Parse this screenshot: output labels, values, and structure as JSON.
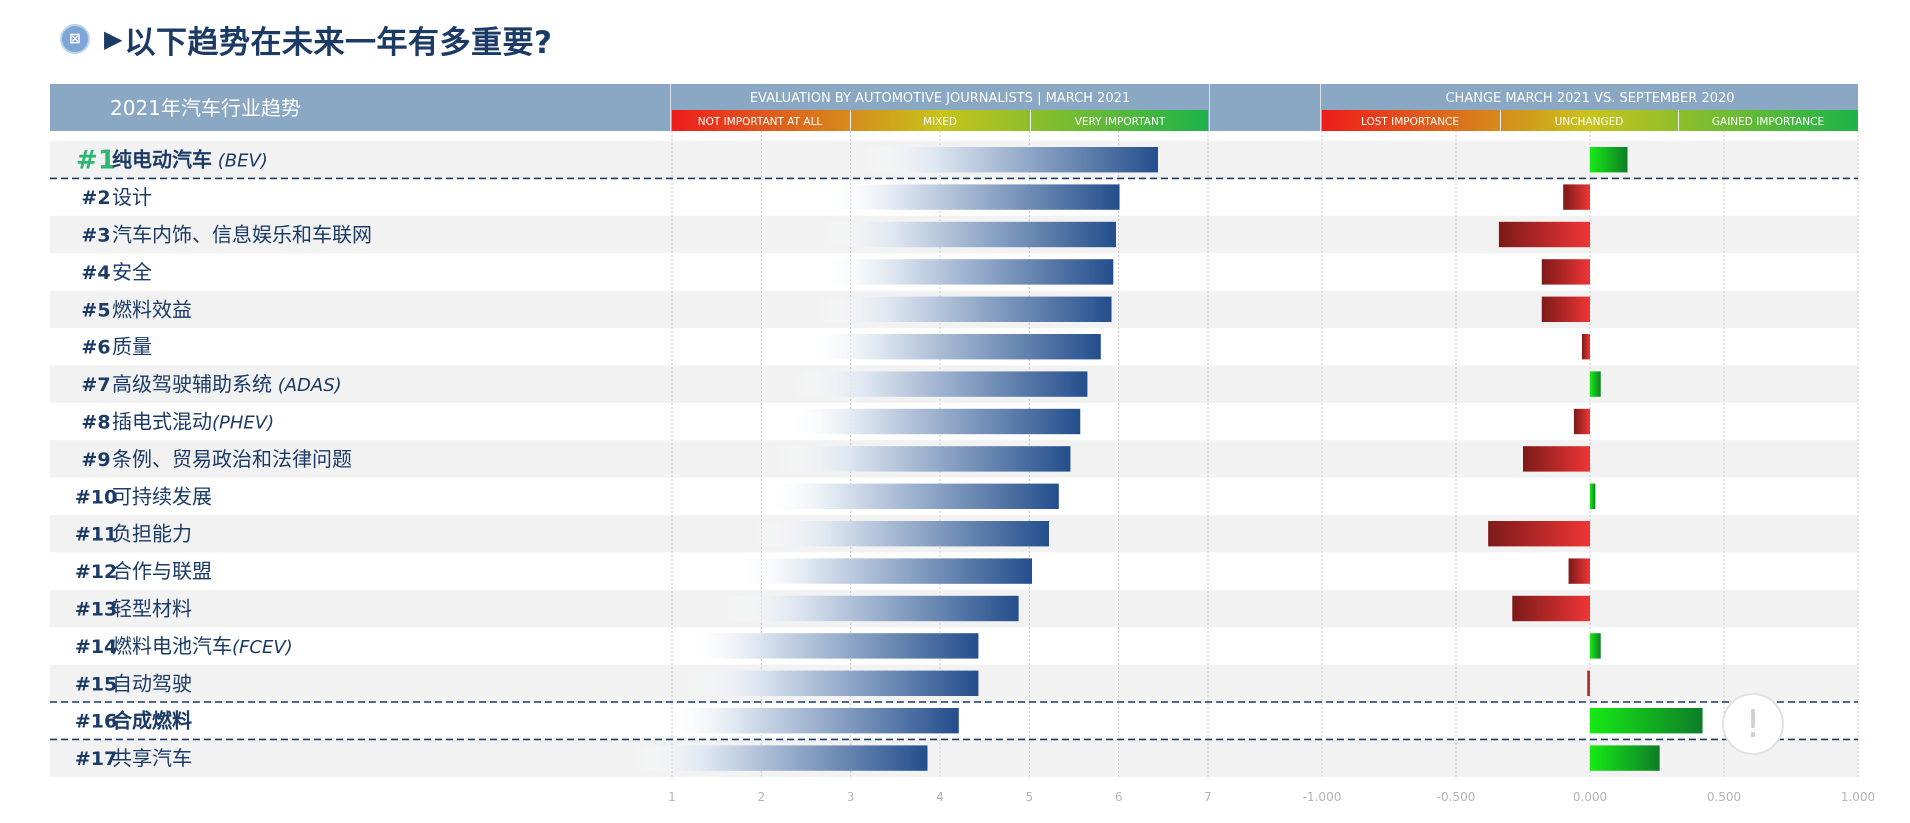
{
  "header": {
    "logo_glyph": "⊠",
    "arrow_glyph": "▶",
    "title": "以下趋势在未来一年有多重要?"
  },
  "table": {
    "column_label": "2021年汽车行业趋势"
  },
  "colors": {
    "header_bg": "#8aa8c4",
    "navy": "#1b3a66",
    "rank1_green": "#2eb872",
    "stripe": "#f2f2f2",
    "bar_end": "#234e8c",
    "neg_red": "#e53030",
    "pos_green": "#15e415"
  },
  "chart_data": [
    {
      "type": "bar",
      "orientation": "horizontal",
      "title": "EVALUATION BY AUTOMOTIVE JOURNALISTS | MARCH 2021",
      "scale_labels": [
        "NOT IMPORTANT AT ALL",
        "MIXED",
        "VERY IMPORTANT"
      ],
      "xlim": [
        1,
        7
      ],
      "xticks": [
        "1",
        "2",
        "3",
        "4",
        "5",
        "6",
        "7"
      ],
      "grid": true,
      "categories": [
        "纯电动汽车 (BEV)",
        "设计",
        "汽车内饰、信息娱乐和车联网",
        "安全",
        "燃料效益",
        "质量",
        "高级驾驶辅助系统 (ADAS)",
        "插电式混动(PHEV)",
        "条例、贸易政治和法律问题",
        "可持续发展",
        "负担能力",
        "合作与联盟",
        "轻型材料",
        "燃料电池汽车(FCEV)",
        "自动驾驶",
        "合成燃料",
        "共享汽车"
      ],
      "values": [
        6.44,
        6.01,
        5.97,
        5.94,
        5.92,
        5.8,
        5.65,
        5.57,
        5.46,
        5.33,
        5.22,
        5.03,
        4.88,
        4.43,
        4.43,
        4.21,
        3.86
      ]
    },
    {
      "type": "bar",
      "orientation": "horizontal",
      "title": "CHANGE MARCH 2021 VS. SEPTEMBER 2020",
      "scale_labels": [
        "LOST IMPORTANCE",
        "UNCHANGED",
        "GAINED IMPORTANCE"
      ],
      "xlim": [
        -1.0,
        1.0
      ],
      "xticks": [
        "-1.000",
        "-0.500",
        "0.000",
        "0.500",
        "1.000"
      ],
      "grid": true,
      "categories": [
        "纯电动汽车 (BEV)",
        "设计",
        "汽车内饰、信息娱乐和车联网",
        "安全",
        "燃料效益",
        "质量",
        "高级驾驶辅助系统 (ADAS)",
        "插电式混动(PHEV)",
        "条例、贸易政治和法律问题",
        "可持续发展",
        "负担能力",
        "合作与联盟",
        "轻型材料",
        "燃料电池汽车(FCEV)",
        "自动驾驶",
        "合成燃料",
        "共享汽车"
      ],
      "values": [
        0.14,
        -0.1,
        -0.34,
        -0.18,
        -0.18,
        -0.03,
        0.04,
        -0.06,
        -0.25,
        0.02,
        -0.38,
        -0.08,
        -0.29,
        0.04,
        -0.01,
        0.42,
        0.26
      ]
    }
  ],
  "rows": [
    {
      "rank": "#1",
      "name": "纯电动汽车",
      "suffix": " (BEV)",
      "bold": true
    },
    {
      "rank": "#2",
      "name": "设计",
      "suffix": "",
      "bold": false
    },
    {
      "rank": "#3",
      "name": "汽车内饰、信息娱乐和车联网",
      "suffix": "",
      "bold": false
    },
    {
      "rank": "#4",
      "name": "安全",
      "suffix": "",
      "bold": false
    },
    {
      "rank": "#5",
      "name": "燃料效益",
      "suffix": "",
      "bold": false
    },
    {
      "rank": "#6",
      "name": "质量",
      "suffix": "",
      "bold": false
    },
    {
      "rank": "#7",
      "name": "高级驾驶辅助系统",
      "suffix": " (ADAS)",
      "bold": false
    },
    {
      "rank": "#8",
      "name": "插电式混动",
      "suffix": "(PHEV)",
      "bold": false
    },
    {
      "rank": "#9",
      "name": "条例、贸易政治和法律问题",
      "suffix": "",
      "bold": false
    },
    {
      "rank": "#10",
      "name": "可持续发展",
      "suffix": "",
      "bold": false
    },
    {
      "rank": "#11",
      "name": "负担能力",
      "suffix": "",
      "bold": false
    },
    {
      "rank": "#12",
      "name": "合作与联盟",
      "suffix": "",
      "bold": false
    },
    {
      "rank": "#13",
      "name": "轻型材料",
      "suffix": "",
      "bold": false
    },
    {
      "rank": "#14",
      "name": "燃料电池汽车",
      "suffix": "(FCEV)",
      "bold": false
    },
    {
      "rank": "#15",
      "name": "自动驾驶",
      "suffix": "",
      "bold": false
    },
    {
      "rank": "#16",
      "name": "合成燃料",
      "suffix": "",
      "bold": true
    },
    {
      "rank": "#17",
      "name": "共享汽车",
      "suffix": "",
      "bold": false
    }
  ],
  "highlight_rows": [
    0,
    15
  ],
  "warning_glyph": "!"
}
